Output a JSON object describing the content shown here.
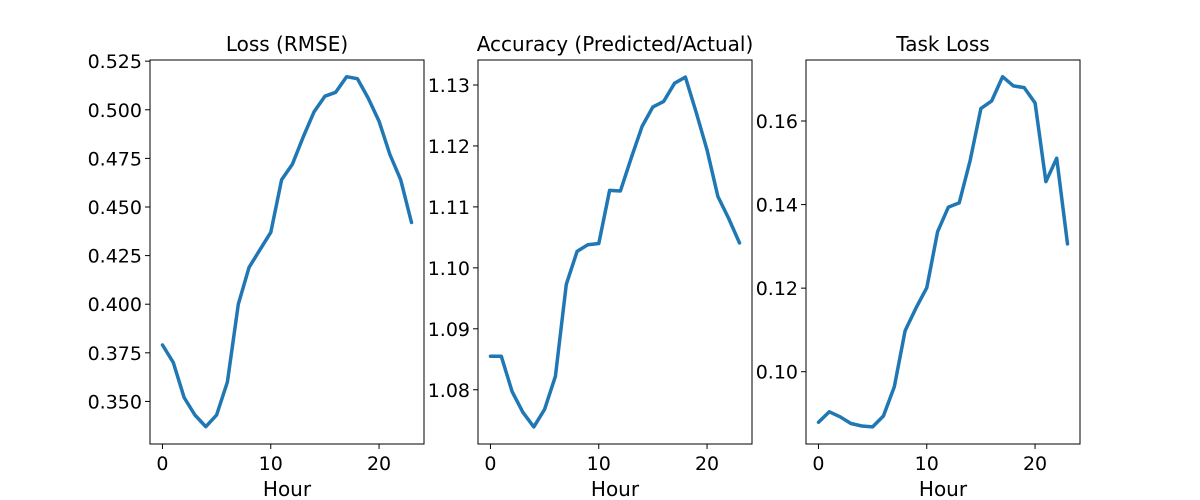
{
  "chart_data": [
    {
      "type": "line",
      "title": "Loss (RMSE)",
      "xlabel": "Hour",
      "ylabel": "",
      "xlim": [
        -1.15,
        24.15
      ],
      "ylim": [
        0.3281,
        0.5256
      ],
      "xticks": [
        0,
        10,
        20
      ],
      "yticks": [
        0.35,
        0.375,
        0.4,
        0.425,
        0.45,
        0.475,
        0.5,
        0.525
      ],
      "ytick_decimals": 3,
      "grid": false,
      "color": "#1f77b4",
      "x": [
        0,
        1,
        2,
        3,
        4,
        5,
        6,
        7,
        8,
        9,
        10,
        11,
        12,
        13,
        14,
        15,
        16,
        17,
        18,
        19,
        20,
        21,
        22,
        23
      ],
      "y": [
        0.379,
        0.37,
        0.352,
        0.343,
        0.337,
        0.343,
        0.36,
        0.4,
        0.419,
        0.428,
        0.437,
        0.464,
        0.472,
        0.486,
        0.499,
        0.507,
        0.509,
        0.517,
        0.516,
        0.506,
        0.494,
        0.477,
        0.464,
        0.442
      ]
    },
    {
      "type": "line",
      "title": "Accuracy (Predicted/Actual)",
      "xlabel": "Hour",
      "ylabel": "",
      "xlim": [
        -1.15,
        24.15
      ],
      "ylim": [
        1.0711,
        1.1341
      ],
      "xticks": [
        0,
        10,
        20
      ],
      "yticks": [
        1.08,
        1.09,
        1.1,
        1.11,
        1.12,
        1.13
      ],
      "ytick_decimals": 2,
      "grid": false,
      "color": "#1f77b4",
      "x": [
        0,
        1,
        2,
        3,
        4,
        5,
        6,
        7,
        8,
        9,
        10,
        11,
        12,
        13,
        14,
        15,
        16,
        17,
        18,
        19,
        20,
        21,
        22,
        23
      ],
      "y": [
        1.0855,
        1.0855,
        1.0797,
        1.0763,
        1.0739,
        1.0768,
        1.0822,
        1.0973,
        1.1027,
        1.1038,
        1.104,
        1.1127,
        1.1126,
        1.118,
        1.1232,
        1.1264,
        1.1273,
        1.1303,
        1.1313,
        1.1255,
        1.1193,
        1.1117,
        1.1081,
        1.1041
      ]
    },
    {
      "type": "line",
      "title": "Task Loss",
      "xlabel": "Hour",
      "ylabel": "",
      "xlim": [
        -1.15,
        24.15
      ],
      "ylim": [
        0.0827,
        0.1746
      ],
      "xticks": [
        0,
        10,
        20
      ],
      "yticks": [
        0.1,
        0.12,
        0.14,
        0.16
      ],
      "ytick_decimals": 2,
      "grid": false,
      "color": "#1f77b4",
      "x": [
        0,
        1,
        2,
        3,
        4,
        5,
        6,
        7,
        8,
        9,
        10,
        11,
        12,
        13,
        14,
        15,
        16,
        17,
        18,
        19,
        20,
        21,
        22,
        23
      ],
      "y": [
        0.0879,
        0.0904,
        0.0892,
        0.0876,
        0.087,
        0.0868,
        0.0894,
        0.0964,
        0.1098,
        0.1152,
        0.1201,
        0.1335,
        0.1394,
        0.1404,
        0.1505,
        0.163,
        0.1648,
        0.1706,
        0.1684,
        0.168,
        0.1643,
        0.1455,
        0.1511,
        0.1306
      ]
    }
  ]
}
